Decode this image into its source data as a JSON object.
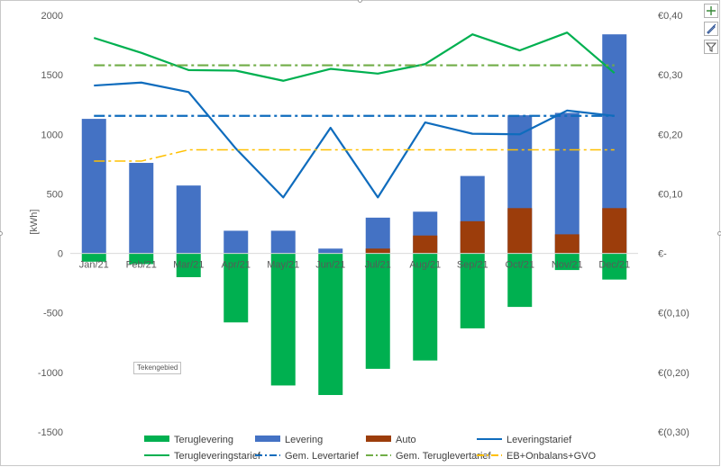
{
  "chart_data": {
    "type": "bar",
    "categories": [
      "Jan/21",
      "Feb/21",
      "Mar/21",
      "Apr/21",
      "May/21",
      "Jun/21",
      "Jul/21",
      "Aug/21",
      "Sep/21",
      "Oct/21",
      "Nov/21",
      "Dec/21"
    ],
    "ylabel": "[kWh]",
    "ylim": [
      -1500,
      2000
    ],
    "yticks": [
      -1500,
      -1000,
      -500,
      0,
      500,
      1000,
      1500,
      2000
    ],
    "y2lim": [
      -0.3,
      0.4
    ],
    "y2ticks": [
      {
        "value": -0.3,
        "label": "€(0,30)"
      },
      {
        "value": -0.2,
        "label": "€(0,20)"
      },
      {
        "value": -0.1,
        "label": "€(0,10)"
      },
      {
        "value": 0.0,
        "label": "€-"
      },
      {
        "value": 0.1,
        "label": "€0,10"
      },
      {
        "value": 0.2,
        "label": "€0,20"
      },
      {
        "value": 0.3,
        "label": "€0,30"
      },
      {
        "value": 0.4,
        "label": "€0,40"
      }
    ],
    "bars": [
      {
        "name": "Teruglevering",
        "color": "#00b050",
        "values": [
          -70,
          -90,
          -200,
          -580,
          -1110,
          -1190,
          -970,
          -900,
          -630,
          -450,
          -140,
          -220
        ]
      },
      {
        "name": "Levering",
        "color": "#4472c4",
        "values": [
          1130,
          760,
          570,
          190,
          190,
          40,
          300,
          350,
          650,
          1160,
          1180,
          1840
        ]
      },
      {
        "name": "Auto",
        "color": "#9c3d0b",
        "values": [
          0,
          0,
          0,
          0,
          0,
          0,
          40,
          150,
          270,
          380,
          160,
          380
        ]
      }
    ],
    "lines": [
      {
        "name": "Leveringstarief",
        "color": "#0f6cbd",
        "dash": "solid",
        "values": [
          0.282,
          0.287,
          0.271,
          0.176,
          0.094,
          0.211,
          0.094,
          0.22,
          0.201,
          0.2,
          0.24,
          0.231
        ]
      },
      {
        "name": "Terugleveringstarief",
        "color": "#00b050",
        "dash": "solid",
        "values": [
          0.362,
          0.337,
          0.308,
          0.307,
          0.29,
          0.31,
          0.302,
          0.318,
          0.368,
          0.341,
          0.371,
          0.303
        ]
      },
      {
        "name": "Gem. Levertarief",
        "color": "#0f6cbd",
        "dash": "dashdot",
        "values": [
          0.231,
          0.231,
          0.231,
          0.231,
          0.231,
          0.231,
          0.231,
          0.231,
          0.231,
          0.231,
          0.231,
          0.231
        ]
      },
      {
        "name": "Gem. Teruglevertarief",
        "color": "#70ad47",
        "dash": "dashdot",
        "values": [
          0.316,
          0.316,
          0.316,
          0.316,
          0.316,
          0.316,
          0.316,
          0.316,
          0.316,
          0.316,
          0.316,
          0.316
        ]
      },
      {
        "name": "EB+Onbalans+GVO",
        "color": "#ffc000",
        "dash": "dashdot",
        "values": [
          0.155,
          0.155,
          0.174,
          0.174,
          0.174,
          0.174,
          0.174,
          0.174,
          0.174,
          0.174,
          0.174,
          0.174
        ]
      }
    ],
    "legend": [
      {
        "name": "Teruglevering",
        "kind": "bar",
        "color": "#00b050"
      },
      {
        "name": "Levering",
        "kind": "bar",
        "color": "#4472c4"
      },
      {
        "name": "Auto",
        "kind": "bar",
        "color": "#9c3d0b"
      },
      {
        "name": "Leveringstarief",
        "kind": "line",
        "color": "#0f6cbd",
        "dash": "solid"
      },
      {
        "name": "Terugleveringstarief",
        "kind": "line",
        "color": "#00b050",
        "dash": "solid"
      },
      {
        "name": "Gem. Levertarief",
        "kind": "line",
        "color": "#0f6cbd",
        "dash": "dashdot"
      },
      {
        "name": "Gem. Teruglevertarief",
        "kind": "line",
        "color": "#70ad47",
        "dash": "dashdot"
      },
      {
        "name": "EB+Onbalans+GVO",
        "kind": "line",
        "color": "#ffc000",
        "dash": "dashdot"
      }
    ],
    "legend_position": "bottom",
    "grid": false
  },
  "tooltip_text": "Tekengebied",
  "toolbar": {
    "add_icon": "plus-icon",
    "style_icon": "brush-icon",
    "filter_icon": "filter-icon"
  }
}
